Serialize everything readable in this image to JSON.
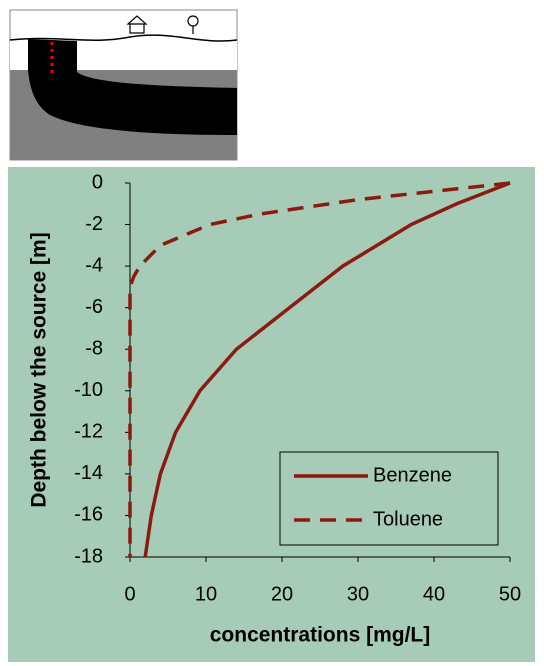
{
  "chart_data": {
    "type": "line",
    "x_label": "concentrations [mg/L]",
    "y_label": "Depth below the source [m]",
    "xlim": [
      0,
      50
    ],
    "xticks": [
      0,
      10,
      20,
      30,
      40,
      50
    ],
    "ylim": [
      -18,
      0
    ],
    "yticks": [
      0,
      -2,
      -4,
      -6,
      -8,
      -10,
      -12,
      -14,
      -16,
      -18
    ],
    "legend": "lower right",
    "series": [
      {
        "name": "Benzene",
        "color": "#8b1a10",
        "style": "solid",
        "x": [
          50,
          43,
          37,
          28,
          21,
          14,
          9.2,
          6,
          4,
          2.8,
          2
        ],
        "values": [
          0,
          -1,
          -2,
          -4,
          -6,
          -8,
          -10,
          -12,
          -14,
          -16,
          -18
        ]
      },
      {
        "name": "Toluene",
        "color": "#8b1a10",
        "style": "dashed",
        "x": [
          50,
          40,
          30,
          17,
          10.5,
          4,
          1.3,
          0.5,
          0,
          0
        ],
        "values": [
          0,
          -0.4,
          -0.8,
          -1.5,
          -2,
          -3,
          -4,
          -4.5,
          -5,
          -18
        ]
      }
    ]
  }
}
